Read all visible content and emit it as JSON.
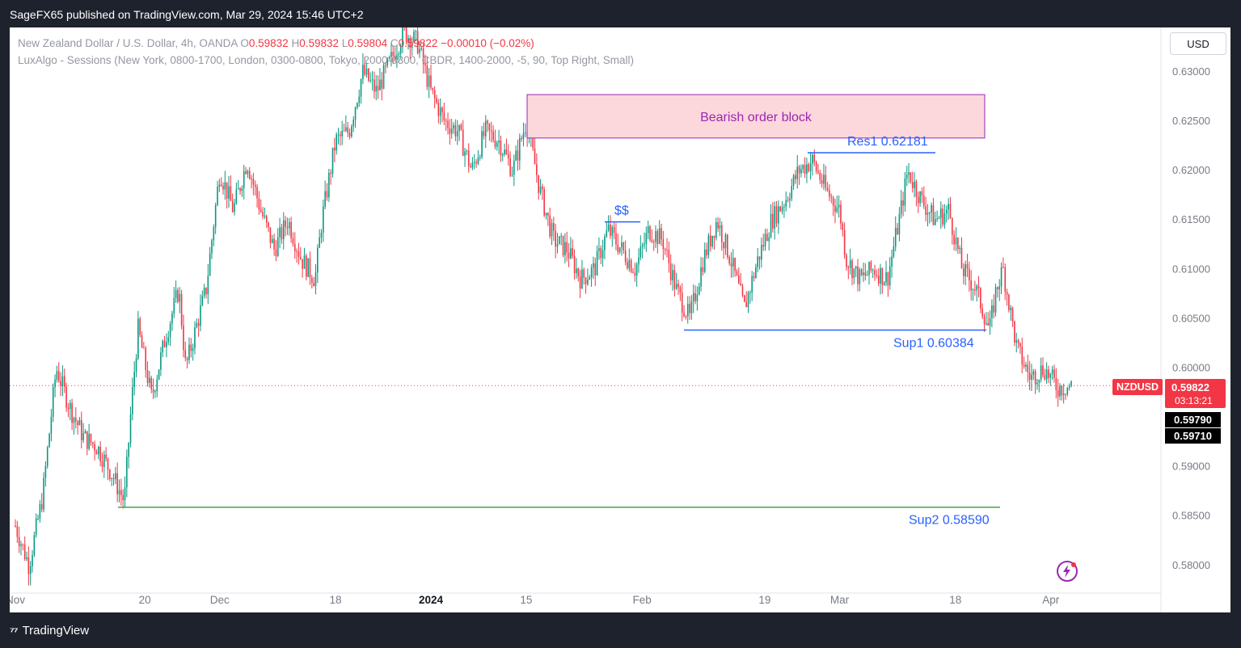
{
  "header": {
    "published": "SageFX65 published on TradingView.com, Mar 29, 2024 15:46 UTC+2"
  },
  "footer": {
    "brand": "TradingView"
  },
  "currency_button": "USD",
  "legend": {
    "symbol_desc": "New Zealand Dollar / U.S. Dollar, 4h, OANDA",
    "ohlc": [
      {
        "k": "O",
        "v": "0.59832"
      },
      {
        "k": "H",
        "v": "0.59832"
      },
      {
        "k": "L",
        "v": "0.59804"
      },
      {
        "k": "C",
        "v": "0.59822"
      }
    ],
    "change": "−0.00010 (−0.02%)",
    "indicator": "LuxAlgo - Sessions (New York, 0800-1700, London, 0300-0800, Tokyo, 2000-0300, CBDR, 1400-2000, -5, 90, Top Right, Small)"
  },
  "price_badges": {
    "symbol": "NZDUSD",
    "price": "0.59822",
    "countdown": "03:13:21",
    "level1": "0.59790",
    "level2": "0.59710"
  },
  "colors": {
    "up": "#089981",
    "down": "#f23645",
    "blue": "#2962ff",
    "green": "#43a047",
    "block_fill": "#fcd7dc",
    "block_border": "#9c27b0"
  },
  "chart_data": {
    "type": "candlestick",
    "symbol": "NZDUSD",
    "timeframe": "4h",
    "ylim": [
      0.5772,
      0.6345
    ],
    "y_ticks": [
      "0.63000",
      "0.62500",
      "0.62000",
      "0.61500",
      "0.61000",
      "0.60500",
      "0.60000",
      "0.59500",
      "0.59000",
      "0.58500",
      "0.58000"
    ],
    "x_ticks": [
      {
        "label": "Nov",
        "day": 0
      },
      {
        "label": "20",
        "day": 19
      },
      {
        "label": "Dec",
        "day": 30
      },
      {
        "label": "18",
        "day": 47
      },
      {
        "label": "2024",
        "day": 61
      },
      {
        "label": "15",
        "day": 75
      },
      {
        "label": "Feb",
        "day": 92
      },
      {
        "label": "19",
        "day": 110
      },
      {
        "label": "Mar",
        "day": 121
      },
      {
        "label": "18",
        "day": 138
      },
      {
        "label": "Apr",
        "day": 152
      }
    ],
    "close_path": [
      [
        0,
        0.584
      ],
      [
        2,
        0.58
      ],
      [
        4,
        0.587
      ],
      [
        6,
        0.6
      ],
      [
        8,
        0.596
      ],
      [
        10,
        0.593
      ],
      [
        12,
        0.592
      ],
      [
        14,
        0.5895
      ],
      [
        16,
        0.5865
      ],
      [
        17,
        0.596
      ],
      [
        18,
        0.604
      ],
      [
        20,
        0.597
      ],
      [
        22,
        0.603
      ],
      [
        24,
        0.608
      ],
      [
        25,
        0.6
      ],
      [
        28,
        0.608
      ],
      [
        30,
        0.62
      ],
      [
        32,
        0.616
      ],
      [
        34,
        0.621
      ],
      [
        36,
        0.616
      ],
      [
        38,
        0.612
      ],
      [
        40,
        0.615
      ],
      [
        42,
        0.611
      ],
      [
        44,
        0.609
      ],
      [
        45,
        0.615
      ],
      [
        47,
        0.623
      ],
      [
        49,
        0.624
      ],
      [
        51,
        0.63
      ],
      [
        53,
        0.628
      ],
      [
        55,
        0.631
      ],
      [
        57,
        0.634
      ],
      [
        59,
        0.633
      ],
      [
        61,
        0.628
      ],
      [
        63,
        0.625
      ],
      [
        65,
        0.624
      ],
      [
        67,
        0.62
      ],
      [
        69,
        0.624
      ],
      [
        71,
        0.623
      ],
      [
        73,
        0.62
      ],
      [
        75,
        0.625
      ],
      [
        77,
        0.618
      ],
      [
        79,
        0.613
      ],
      [
        81,
        0.612
      ],
      [
        83,
        0.609
      ],
      [
        85,
        0.61
      ],
      [
        87,
        0.614
      ],
      [
        89,
        0.612
      ],
      [
        91,
        0.61
      ],
      [
        93,
        0.614
      ],
      [
        95,
        0.613
      ],
      [
        97,
        0.608
      ],
      [
        99,
        0.605
      ],
      [
        101,
        0.611
      ],
      [
        103,
        0.615
      ],
      [
        105,
        0.611
      ],
      [
        107,
        0.606
      ],
      [
        109,
        0.611
      ],
      [
        111,
        0.615
      ],
      [
        113,
        0.617
      ],
      [
        115,
        0.62
      ],
      [
        117,
        0.621
      ],
      [
        119,
        0.618
      ],
      [
        121,
        0.616
      ],
      [
        122,
        0.611
      ],
      [
        124,
        0.609
      ],
      [
        126,
        0.61
      ],
      [
        128,
        0.609
      ],
      [
        130,
        0.616
      ],
      [
        131,
        0.62
      ],
      [
        133,
        0.617
      ],
      [
        135,
        0.615
      ],
      [
        137,
        0.616
      ],
      [
        139,
        0.61
      ],
      [
        141,
        0.608
      ],
      [
        143,
        0.6038
      ],
      [
        144,
        0.608
      ],
      [
        145,
        0.61
      ],
      [
        147,
        0.602
      ],
      [
        149,
        0.599
      ],
      [
        151,
        0.6
      ],
      [
        153,
        0.598
      ],
      [
        155,
        0.5982
      ]
    ],
    "annotations": [
      {
        "label": "Bearish order block",
        "type": "zone",
        "y_top": 0.6277,
        "y_bottom": 0.6233
      },
      {
        "label": "Res1 0.62181",
        "type": "hline",
        "y": 0.62181
      },
      {
        "label": "$$",
        "type": "hline",
        "y": 0.6148
      },
      {
        "label": "Sup1  0.60384",
        "type": "hline",
        "y": 0.60384
      },
      {
        "label": "Sup2 0.58590",
        "type": "hline",
        "y": 0.5859
      }
    ],
    "last_price": 0.59822
  }
}
